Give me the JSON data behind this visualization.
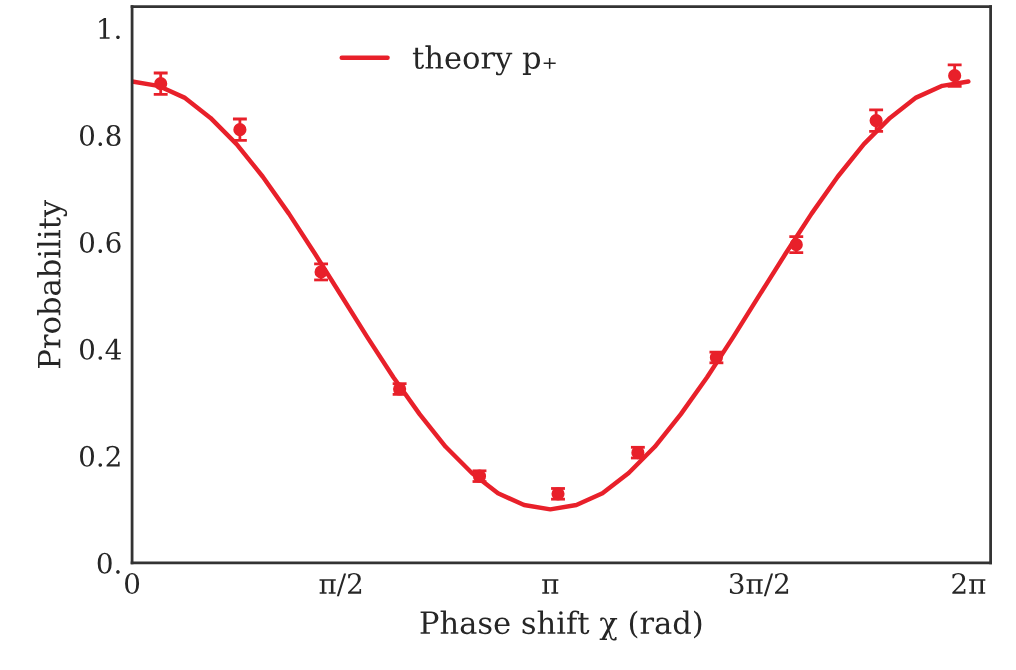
{
  "chart_data": {
    "type": "line",
    "xlabel": "Phase shift χ (rad)",
    "ylabel": "Probability",
    "xlim": [
      0,
      6.45
    ],
    "ylim": [
      0,
      1.04
    ],
    "xticks": [
      {
        "value": 0,
        "label": "0"
      },
      {
        "value": 1.5708,
        "label": "π/2"
      },
      {
        "value": 3.1416,
        "label": "π"
      },
      {
        "value": 4.7124,
        "label": "3π/2"
      },
      {
        "value": 6.2832,
        "label": "2π"
      }
    ],
    "yticks": [
      {
        "value": 0,
        "label": "0."
      },
      0.2,
      0.4,
      0.6,
      0.8,
      {
        "value": 1,
        "label": "1."
      }
    ],
    "grid": false,
    "legend": "top",
    "series": [
      {
        "name": "theory p₊",
        "color": "#e8202a",
        "line_style": "solid",
        "marker": "none",
        "x": [
          0,
          0.196,
          0.393,
          0.589,
          0.785,
          0.982,
          1.178,
          1.374,
          1.571,
          1.767,
          1.963,
          2.16,
          2.356,
          2.553,
          2.749,
          2.945,
          3.142,
          3.338,
          3.534,
          3.731,
          3.927,
          4.123,
          4.32,
          4.516,
          4.712,
          4.909,
          5.105,
          5.301,
          5.498,
          5.694,
          5.89,
          6.087,
          6.283
        ],
        "values": [
          0.9,
          0.892,
          0.87,
          0.832,
          0.783,
          0.722,
          0.653,
          0.578,
          0.5,
          0.422,
          0.347,
          0.278,
          0.217,
          0.168,
          0.13,
          0.108,
          0.1,
          0.108,
          0.13,
          0.168,
          0.217,
          0.278,
          0.347,
          0.422,
          0.5,
          0.578,
          0.653,
          0.722,
          0.783,
          0.832,
          0.87,
          0.892,
          0.9
        ]
      },
      {
        "type": "scatter",
        "color": "#e8202a",
        "marker": "circle",
        "x": [
          0.215,
          0.81,
          1.42,
          2.01,
          2.61,
          3.2,
          3.8,
          4.39,
          4.99,
          5.59,
          6.18
        ],
        "values": [
          0.896,
          0.81,
          0.544,
          0.325,
          0.162,
          0.129,
          0.206,
          0.384,
          0.595,
          0.827,
          0.911
        ],
        "errors": [
          0.02,
          0.02,
          0.015,
          0.01,
          0.01,
          0.01,
          0.01,
          0.01,
          0.015,
          0.02,
          0.02
        ]
      }
    ]
  }
}
